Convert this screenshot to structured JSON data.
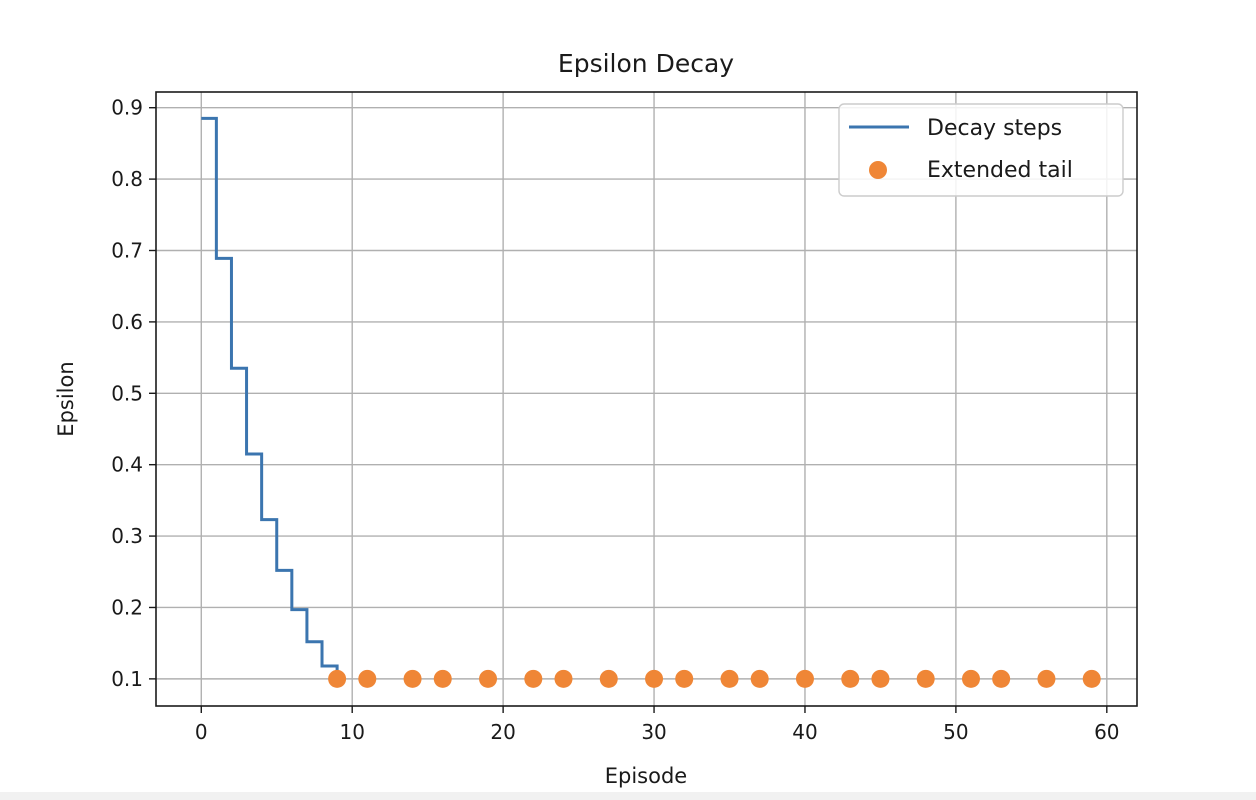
{
  "chart_data": {
    "type": "line",
    "title": "Epsilon Decay",
    "xlabel": "Episode",
    "ylabel": "Epsilon",
    "xlim": [
      -3,
      62
    ],
    "ylim": [
      0.062,
      0.922
    ],
    "xticks": [
      0,
      10,
      20,
      30,
      40,
      50,
      60
    ],
    "yticks": [
      0.1,
      0.2,
      0.3,
      0.4,
      0.5,
      0.6,
      0.7,
      0.8,
      0.9
    ],
    "xtick_labels": [
      "0",
      "10",
      "20",
      "30",
      "40",
      "50",
      "60"
    ],
    "ytick_labels": [
      "0.1",
      "0.2",
      "0.3",
      "0.4",
      "0.5",
      "0.6",
      "0.7",
      "0.8",
      "0.9"
    ],
    "grid": true,
    "legend_position": "top-right",
    "series": [
      {
        "name": "Decay steps",
        "kind": "step",
        "color": "#3b75af",
        "x": [
          0,
          1,
          2,
          3,
          4,
          5,
          6,
          7,
          8,
          9
        ],
        "y": [
          0.885,
          0.689,
          0.535,
          0.415,
          0.323,
          0.252,
          0.197,
          0.152,
          0.118,
          0.1
        ]
      },
      {
        "name": "Extended tail",
        "kind": "scatter",
        "color": "#ef8636",
        "x": [
          9,
          11,
          14,
          16,
          19,
          22,
          24,
          27,
          30,
          32,
          35,
          37,
          40,
          43,
          45,
          48,
          51,
          53,
          56,
          59
        ],
        "y": [
          0.1,
          0.1,
          0.1,
          0.1,
          0.1,
          0.1,
          0.1,
          0.1,
          0.1,
          0.1,
          0.1,
          0.1,
          0.1,
          0.1,
          0.1,
          0.1,
          0.1,
          0.1,
          0.1,
          0.1
        ]
      }
    ]
  }
}
